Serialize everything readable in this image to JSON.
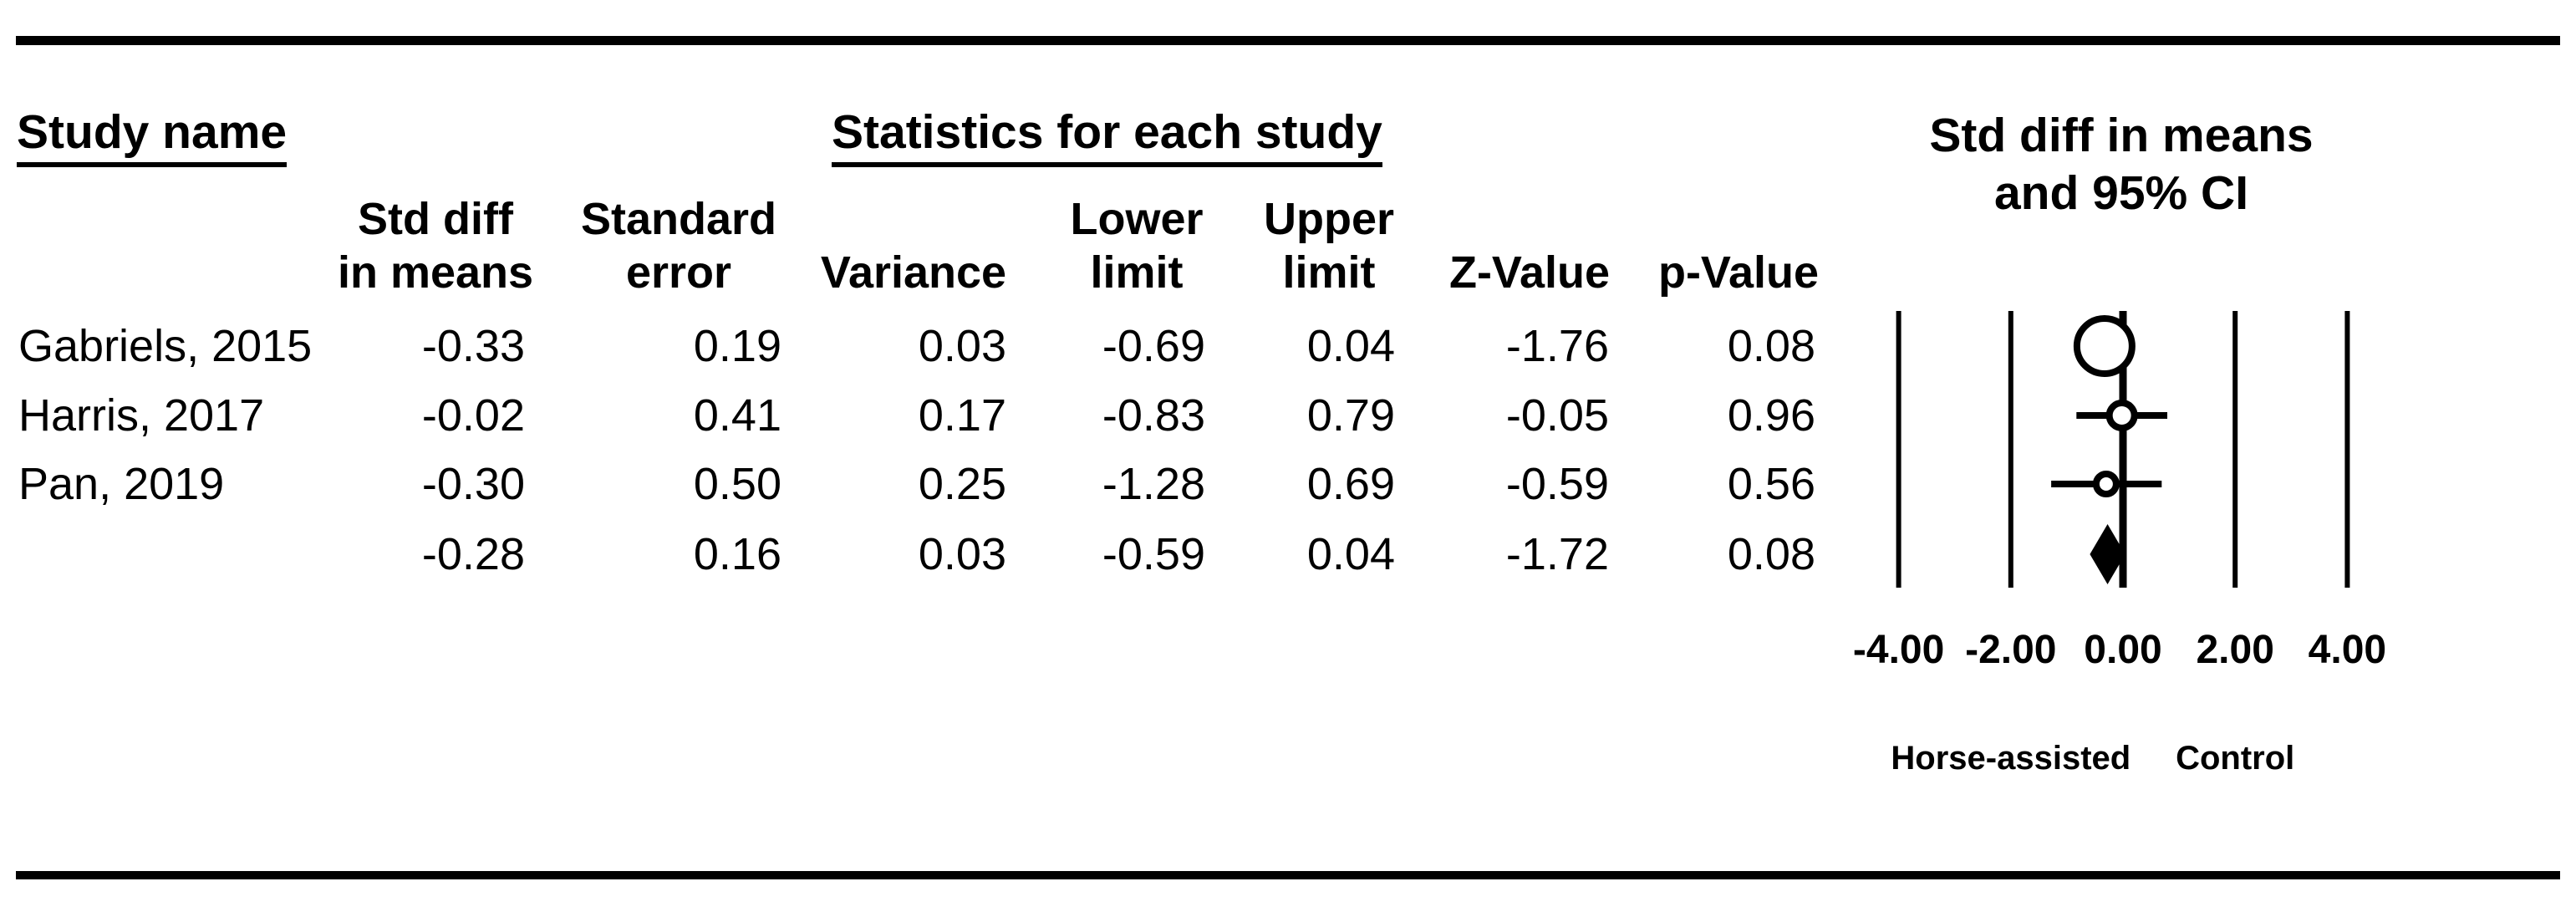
{
  "header": {
    "study_name": "Study name",
    "statistics": "Statistics for each study",
    "plot_title_line1": "Std diff in means",
    "plot_title_line2": "and 95% CI"
  },
  "columns": [
    {
      "id": "std_diff",
      "lines": [
        "Std diff",
        "in means"
      ]
    },
    {
      "id": "standard_error",
      "lines": [
        "Standard",
        "error"
      ]
    },
    {
      "id": "variance",
      "lines": [
        "Variance"
      ]
    },
    {
      "id": "lower_limit",
      "lines": [
        "Lower",
        "limit"
      ]
    },
    {
      "id": "upper_limit",
      "lines": [
        "Upper",
        "limit"
      ]
    },
    {
      "id": "z_value",
      "lines": [
        "Z-Value"
      ]
    },
    {
      "id": "p_value",
      "lines": [
        "p-Value"
      ]
    }
  ],
  "table": {
    "rows": [
      {
        "study": "Gabriels, 2015",
        "std_diff": "-0.33",
        "standard_error": "0.19",
        "variance": "0.03",
        "lower_limit": "-0.69",
        "upper_limit": "0.04",
        "z_value": "-1.76",
        "p_value": "0.08"
      },
      {
        "study": "Harris, 2017",
        "std_diff": "-0.02",
        "standard_error": "0.41",
        "variance": "0.17",
        "lower_limit": "-0.83",
        "upper_limit": "0.79",
        "z_value": "-0.05",
        "p_value": "0.96"
      },
      {
        "study": "Pan, 2019",
        "std_diff": "-0.30",
        "standard_error": "0.50",
        "variance": "0.25",
        "lower_limit": "-1.28",
        "upper_limit": "0.69",
        "z_value": "-0.59",
        "p_value": "0.56"
      }
    ],
    "summary_row": {
      "study": "",
      "std_diff": "-0.28",
      "standard_error": "0.16",
      "variance": "0.03",
      "lower_limit": "-0.59",
      "upper_limit": "0.04",
      "z_value": "-1.72",
      "p_value": "0.08"
    }
  },
  "chart_data": {
    "type": "forest",
    "title": "Std diff in means and 95% CI",
    "x_axis": {
      "tick_labels": [
        "-4.00",
        "-2.00",
        "0.00",
        "2.00",
        "4.00"
      ],
      "tick_values": [
        -4,
        -2,
        0,
        2,
        4
      ],
      "min": -4,
      "max": 4,
      "zero_line": 0
    },
    "studies": [
      {
        "name": "Gabriels, 2015",
        "point": -0.33,
        "lower": -0.69,
        "upper": 0.04,
        "marker": "circle",
        "radius_px": 33
      },
      {
        "name": "Harris, 2017",
        "point": -0.02,
        "lower": -0.83,
        "upper": 0.79,
        "marker": "circle",
        "radius_px": 15
      },
      {
        "name": "Pan, 2019",
        "point": -0.3,
        "lower": -1.28,
        "upper": 0.69,
        "marker": "circle",
        "radius_px": 12
      }
    ],
    "summary": {
      "point": -0.28,
      "lower": -0.59,
      "upper": 0.04,
      "marker": "diamond"
    },
    "footer_labels": {
      "left": "Horse-assisted",
      "right": "Control"
    },
    "colors": {
      "line": "#000000",
      "marker_fill": "#ffffff",
      "summary_fill": "#000000"
    }
  }
}
